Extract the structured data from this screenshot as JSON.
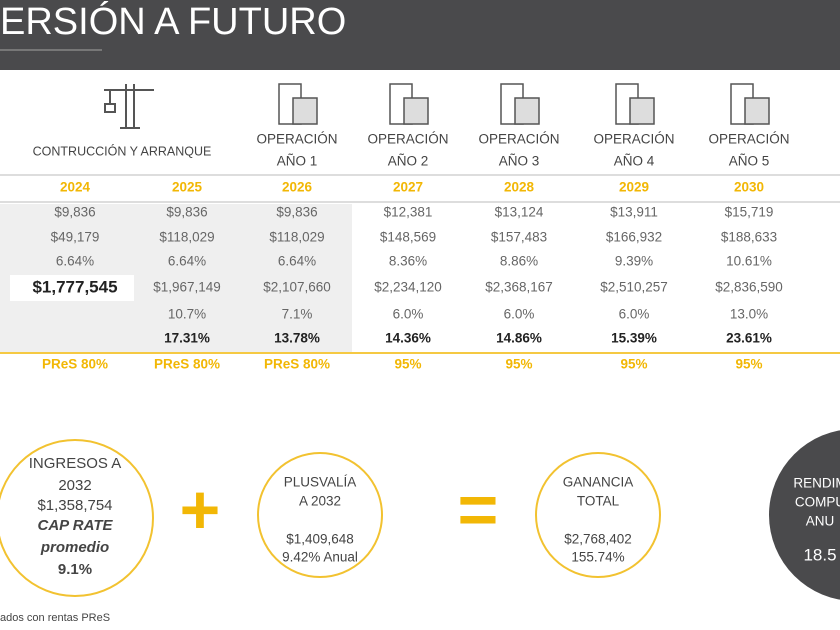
{
  "header": {
    "title": "ERSIÓN A FUTURO"
  },
  "table": {
    "group_label": "CONTRUCCIÓN Y ARRANQUE",
    "operation_headers": [
      [
        "OPERACIÓN",
        "AÑO 1"
      ],
      [
        "OPERACIÓN",
        "AÑO 2"
      ],
      [
        "OPERACIÓN",
        "AÑO 3"
      ],
      [
        "OPERACIÓN",
        "AÑO 4"
      ],
      [
        "OPERACIÓN",
        "AÑO 5"
      ]
    ],
    "years": [
      "2024",
      "2025",
      "2026",
      "2027",
      "2028",
      "2029",
      "2030"
    ],
    "rows": [
      [
        "$9,836",
        "$9,836",
        "$9,836",
        "$12,381",
        "$13,124",
        "$13,911",
        "$15,719"
      ],
      [
        "$49,179",
        "$118,029",
        "$118,029",
        "$148,569",
        "$157,483",
        "$166,932",
        "$188,633"
      ],
      [
        "6.64%",
        "6.64%",
        "6.64%",
        "8.36%",
        "8.86%",
        "9.39%",
        "10.61%"
      ],
      [
        "$1,777,545",
        "$1,967,149",
        "$2,107,660",
        "$2,234,120",
        "$2,368,167",
        "$2,510,257",
        "$2,836,590"
      ],
      [
        null,
        "10.7%",
        "7.1%",
        "6.0%",
        "6.0%",
        "6.0%",
        "13.0%"
      ],
      [
        null,
        "17.31%",
        "13.78%",
        "14.36%",
        "14.86%",
        "15.39%",
        "23.61%"
      ],
      [
        "PReS 80%",
        "PReS 80%",
        "PReS 80%",
        "95%",
        "95%",
        "95%",
        "95%"
      ]
    ]
  },
  "summary": {
    "circles": [
      [
        "INGRESOS A",
        "2032",
        "$1,358,754",
        "CAP RATE",
        "promedio",
        "9.1%"
      ],
      [
        "PLUSVALÍA",
        "A 2032",
        "$1,409,648",
        "9.42% Anual"
      ],
      [
        "GANANCIA",
        "TOTAL",
        "$2,768,402",
        "155.74%"
      ],
      [
        "RENDIM",
        "COMPU",
        "ANU",
        "18.5"
      ]
    ]
  },
  "footer": "ados con rentas PReS"
}
